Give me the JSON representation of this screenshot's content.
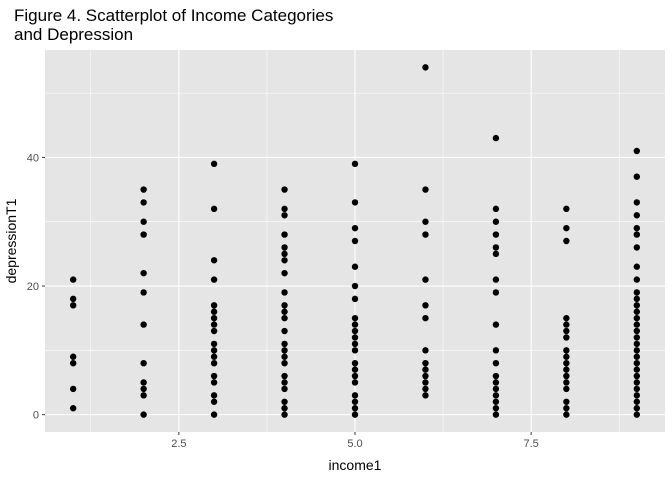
{
  "chart_data": {
    "type": "scatter",
    "title": "Figure 4. Scatterplot of Income Categories\nand Depression",
    "xlabel": "income1",
    "ylabel": "depressionT1",
    "xlim": [
      0.6,
      9.4
    ],
    "ylim": [
      -2.7,
      56.7
    ],
    "x_ticks": [
      2.5,
      5.0,
      7.5
    ],
    "x_tick_labels": [
      "2.5",
      "5.0",
      "7.5"
    ],
    "y_ticks": [
      0,
      20,
      40
    ],
    "y_tick_labels": [
      "0",
      "20",
      "40"
    ],
    "grid": true,
    "theme": "ggplot2-grey",
    "colors": {
      "panel": "#e5e5e5",
      "grid": "#ffffff",
      "point": "#000000"
    },
    "series": [
      {
        "points": [
          [
            1,
            21
          ],
          [
            1,
            18
          ],
          [
            1,
            17
          ],
          [
            1,
            9
          ],
          [
            1,
            8
          ],
          [
            1,
            4
          ],
          [
            1,
            1
          ],
          [
            2,
            35
          ],
          [
            2,
            33
          ],
          [
            2,
            30
          ],
          [
            2,
            28
          ],
          [
            2,
            22
          ],
          [
            2,
            19
          ],
          [
            2,
            14
          ],
          [
            2,
            8
          ],
          [
            2,
            5
          ],
          [
            2,
            4
          ],
          [
            2,
            3
          ],
          [
            2,
            0
          ],
          [
            3,
            39
          ],
          [
            3,
            32
          ],
          [
            3,
            24
          ],
          [
            3,
            21
          ],
          [
            3,
            17
          ],
          [
            3,
            16
          ],
          [
            3,
            15
          ],
          [
            3,
            14
          ],
          [
            3,
            13
          ],
          [
            3,
            11
          ],
          [
            3,
            10
          ],
          [
            3,
            9
          ],
          [
            3,
            8
          ],
          [
            3,
            6
          ],
          [
            3,
            5
          ],
          [
            3,
            3
          ],
          [
            3,
            2
          ],
          [
            3,
            0
          ],
          [
            4,
            35
          ],
          [
            4,
            32
          ],
          [
            4,
            31
          ],
          [
            4,
            28
          ],
          [
            4,
            26
          ],
          [
            4,
            25
          ],
          [
            4,
            24
          ],
          [
            4,
            22
          ],
          [
            4,
            19
          ],
          [
            4,
            17
          ],
          [
            4,
            16
          ],
          [
            4,
            15
          ],
          [
            4,
            13
          ],
          [
            4,
            11
          ],
          [
            4,
            10
          ],
          [
            4,
            9
          ],
          [
            4,
            8
          ],
          [
            4,
            6
          ],
          [
            4,
            5
          ],
          [
            4,
            4
          ],
          [
            4,
            2
          ],
          [
            4,
            1
          ],
          [
            4,
            0
          ],
          [
            5,
            39
          ],
          [
            5,
            33
          ],
          [
            5,
            29
          ],
          [
            5,
            27
          ],
          [
            5,
            23
          ],
          [
            5,
            20
          ],
          [
            5,
            18
          ],
          [
            5,
            15
          ],
          [
            5,
            14
          ],
          [
            5,
            13
          ],
          [
            5,
            12
          ],
          [
            5,
            11
          ],
          [
            5,
            10
          ],
          [
            5,
            8
          ],
          [
            5,
            7
          ],
          [
            5,
            6
          ],
          [
            5,
            5
          ],
          [
            5,
            3
          ],
          [
            5,
            2
          ],
          [
            5,
            1
          ],
          [
            5,
            0
          ],
          [
            6,
            54
          ],
          [
            6,
            35
          ],
          [
            6,
            30
          ],
          [
            6,
            28
          ],
          [
            6,
            21
          ],
          [
            6,
            17
          ],
          [
            6,
            15
          ],
          [
            6,
            10
          ],
          [
            6,
            8
          ],
          [
            6,
            7
          ],
          [
            6,
            6
          ],
          [
            6,
            5
          ],
          [
            6,
            4
          ],
          [
            6,
            3
          ],
          [
            7,
            43
          ],
          [
            7,
            32
          ],
          [
            7,
            30
          ],
          [
            7,
            28
          ],
          [
            7,
            26
          ],
          [
            7,
            25
          ],
          [
            7,
            21
          ],
          [
            7,
            19
          ],
          [
            7,
            14
          ],
          [
            7,
            10
          ],
          [
            7,
            8
          ],
          [
            7,
            6
          ],
          [
            7,
            5
          ],
          [
            7,
            4
          ],
          [
            7,
            3
          ],
          [
            7,
            2
          ],
          [
            7,
            1
          ],
          [
            7,
            0
          ],
          [
            8,
            32
          ],
          [
            8,
            29
          ],
          [
            8,
            27
          ],
          [
            8,
            15
          ],
          [
            8,
            14
          ],
          [
            8,
            13
          ],
          [
            8,
            12
          ],
          [
            8,
            10
          ],
          [
            8,
            9
          ],
          [
            8,
            8
          ],
          [
            8,
            7
          ],
          [
            8,
            6
          ],
          [
            8,
            5
          ],
          [
            8,
            4
          ],
          [
            8,
            2
          ],
          [
            8,
            1
          ],
          [
            8,
            0
          ],
          [
            9,
            41
          ],
          [
            9,
            37
          ],
          [
            9,
            33
          ],
          [
            9,
            31
          ],
          [
            9,
            29
          ],
          [
            9,
            28
          ],
          [
            9,
            26
          ],
          [
            9,
            23
          ],
          [
            9,
            21
          ],
          [
            9,
            19
          ],
          [
            9,
            18
          ],
          [
            9,
            17
          ],
          [
            9,
            16
          ],
          [
            9,
            15
          ],
          [
            9,
            14
          ],
          [
            9,
            13
          ],
          [
            9,
            12
          ],
          [
            9,
            11
          ],
          [
            9,
            10
          ],
          [
            9,
            9
          ],
          [
            9,
            8
          ],
          [
            9,
            7
          ],
          [
            9,
            6
          ],
          [
            9,
            5
          ],
          [
            9,
            4
          ],
          [
            9,
            3
          ],
          [
            9,
            2
          ],
          [
            9,
            1
          ],
          [
            9,
            0
          ]
        ]
      }
    ]
  }
}
